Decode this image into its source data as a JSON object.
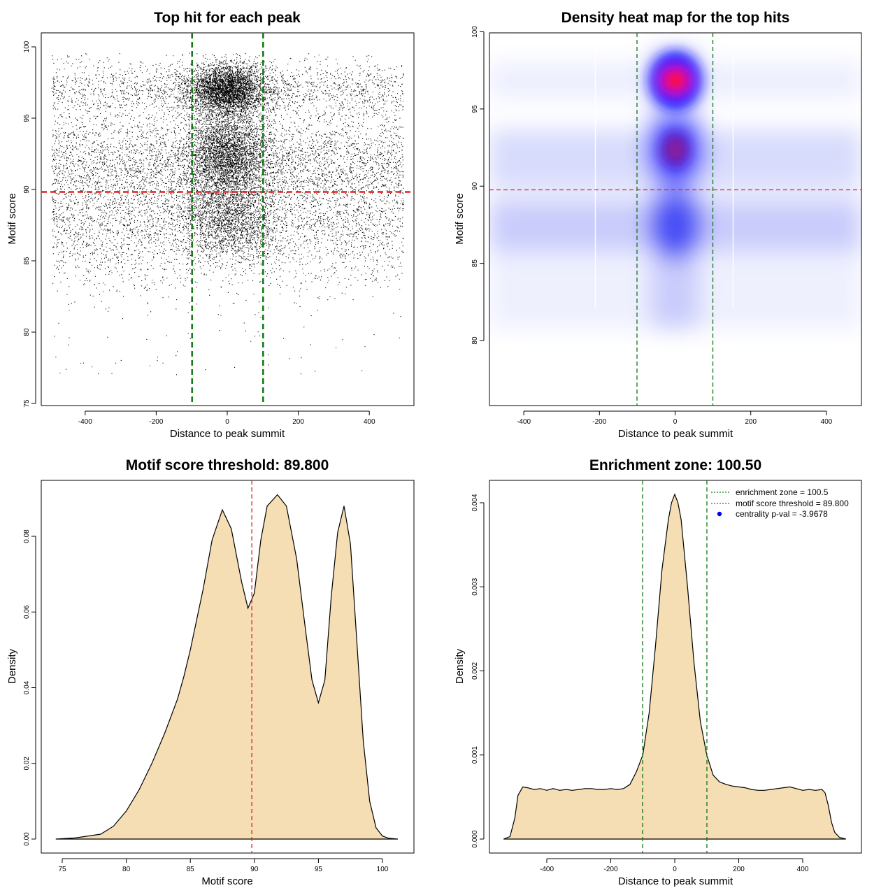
{
  "chart_data": [
    {
      "type": "scatter",
      "title": "Top hit for each peak",
      "xlabel": "Distance to peak summit",
      "ylabel": "Motif score",
      "xlim": [
        -500,
        500
      ],
      "ylim": [
        75,
        100
      ],
      "xticks": [
        -400,
        -200,
        0,
        200,
        400
      ],
      "yticks": [
        75,
        80,
        85,
        90,
        95,
        100
      ],
      "point_count_approx": 30000,
      "clusters": [
        {
          "x_center": 0,
          "y_center": 97,
          "note": "dense cluster near summit"
        },
        {
          "x_center": 0,
          "y_center": 92.5,
          "note": "dense cluster near summit"
        },
        {
          "x_center": 0,
          "y_center": 87.5,
          "note": "dense cluster near summit"
        }
      ],
      "hline": {
        "y": 89.8,
        "color": "#dd2222",
        "style": "dashed"
      },
      "vlines": [
        {
          "x": -100,
          "color": "#117711",
          "style": "dashed"
        },
        {
          "x": 100,
          "color": "#117711",
          "style": "dashed"
        }
      ]
    },
    {
      "type": "heatmap",
      "title": "Density heat map for the top hits",
      "xlabel": "Distance to peak summit",
      "ylabel": "Motif score",
      "xlim": [
        -500,
        500
      ],
      "ylim": [
        75.5,
        100
      ],
      "xticks": [
        -400,
        -200,
        0,
        200,
        400
      ],
      "yticks": [
        80,
        85,
        90,
        95,
        100
      ],
      "hotspots": [
        {
          "x": 0,
          "y": 97,
          "intensity": "max (red)"
        },
        {
          "x": 0,
          "y": 92.3,
          "intensity": "high (dark blue/red)"
        },
        {
          "x": 0,
          "y": 87.5,
          "intensity": "medium (blue)"
        }
      ],
      "hline": {
        "y": 89.8,
        "color": "#dd2222",
        "style": "dashed"
      },
      "vlines": [
        {
          "x": -100,
          "color": "#117711",
          "style": "dashed"
        },
        {
          "x": 100,
          "color": "#117711",
          "style": "dashed"
        }
      ]
    },
    {
      "type": "area",
      "title": "Motif score threshold: 89.800",
      "xlabel": "Motif score",
      "ylabel": "Density",
      "xlim": [
        74.5,
        101.2
      ],
      "ylim": [
        0,
        0.092
      ],
      "xticks": [
        75,
        80,
        85,
        90,
        95,
        100
      ],
      "yticks": [
        "0.00",
        "0.02",
        "0.04",
        "0.06",
        "0.08"
      ],
      "x": [
        74.5,
        76,
        78,
        79,
        80,
        81,
        82,
        83,
        84,
        84.5,
        85,
        86,
        86.7,
        87.5,
        88.2,
        89,
        89.5,
        90,
        90.5,
        91,
        91.8,
        92.5,
        93.3,
        94,
        94.5,
        95,
        95.5,
        96,
        96.5,
        97,
        97.5,
        98,
        98.5,
        99,
        99.5,
        100,
        100.5,
        101.2
      ],
      "y": [
        0,
        0.0003,
        0.0013,
        0.0034,
        0.0074,
        0.013,
        0.02,
        0.028,
        0.037,
        0.043,
        0.05,
        0.066,
        0.079,
        0.087,
        0.082,
        0.068,
        0.061,
        0.065,
        0.079,
        0.088,
        0.091,
        0.088,
        0.074,
        0.055,
        0.042,
        0.036,
        0.042,
        0.064,
        0.081,
        0.088,
        0.078,
        0.052,
        0.026,
        0.01,
        0.003,
        0.0008,
        0.0002,
        0
      ],
      "fill": "#f5deb3",
      "vline": {
        "x": 89.8,
        "color": "#dd2222",
        "style": "dashed"
      }
    },
    {
      "type": "area",
      "title": "Enrichment zone: 100.50",
      "xlabel": "Distance to peak summit",
      "ylabel": "Density",
      "xlim": [
        -535,
        535
      ],
      "ylim": [
        0,
        0.0041
      ],
      "xticks": [
        -400,
        -200,
        0,
        200,
        400
      ],
      "yticks": [
        "0.000",
        "0.001",
        "0.002",
        "0.003",
        "0.004"
      ],
      "x": [
        -535,
        -515,
        -500,
        -490,
        -475,
        -460,
        -440,
        -420,
        -400,
        -380,
        -360,
        -340,
        -320,
        -300,
        -280,
        -260,
        -240,
        -220,
        -200,
        -180,
        -160,
        -140,
        -120,
        -100,
        -80,
        -60,
        -40,
        -20,
        -10,
        0,
        10,
        20,
        40,
        60,
        80,
        100,
        120,
        140,
        160,
        180,
        200,
        220,
        240,
        260,
        280,
        300,
        320,
        340,
        360,
        380,
        400,
        420,
        440,
        460,
        470,
        480,
        490,
        500,
        515,
        535
      ],
      "y": [
        0,
        3e-05,
        0.00025,
        0.00052,
        0.00062,
        0.00061,
        0.00059,
        0.0006,
        0.00058,
        0.0006,
        0.00058,
        0.00059,
        0.00058,
        0.00059,
        0.0006,
        0.0006,
        0.00059,
        0.00059,
        0.0006,
        0.00059,
        0.0006,
        0.00065,
        0.0008,
        0.001,
        0.0015,
        0.0023,
        0.0032,
        0.0038,
        0.004,
        0.0041,
        0.004,
        0.0038,
        0.003,
        0.0021,
        0.0014,
        0.001,
        0.00076,
        0.00068,
        0.00065,
        0.00063,
        0.00062,
        0.00061,
        0.00059,
        0.00058,
        0.00058,
        0.00059,
        0.0006,
        0.00061,
        0.00062,
        0.0006,
        0.00058,
        0.00059,
        0.00058,
        0.00059,
        0.00055,
        0.0004,
        0.0002,
        8e-05,
        2e-05,
        0
      ],
      "fill": "#f5deb3",
      "vlines": [
        {
          "x": -100.5,
          "color": "#117711",
          "style": "dashed"
        },
        {
          "x": 100.5,
          "color": "#117711",
          "style": "dashed"
        }
      ],
      "legend": {
        "position": "top-right",
        "entries": [
          {
            "label": "enrichment zone = 100.5",
            "color": "#117711",
            "style": "dotted-line"
          },
          {
            "label": "motif score threshold = 89.800",
            "color": "#dd2222",
            "style": "dotted-line"
          },
          {
            "label": "centrality p-val = -3.9678",
            "color": "#0000ee",
            "style": "point"
          }
        ]
      }
    }
  ]
}
